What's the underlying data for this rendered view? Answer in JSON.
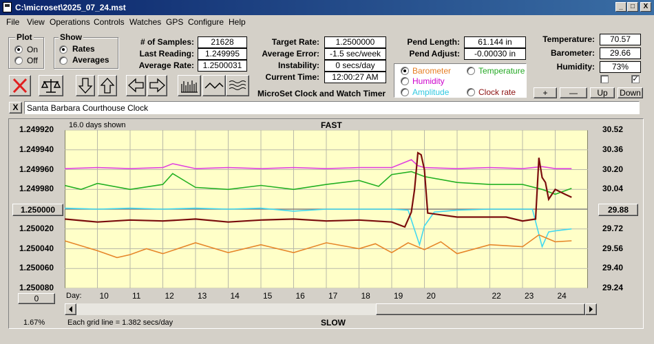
{
  "window": {
    "title": "C:\\microset\\2025_07_24.mst",
    "minimize": "_",
    "maximize": "□",
    "close": "X"
  },
  "menu": [
    "File",
    "View",
    "Operations",
    "Controls",
    "Watches",
    "GPS",
    "Configure",
    "Help"
  ],
  "plot_group": {
    "title": "Plot",
    "on": "On",
    "off": "Off",
    "selected": "On"
  },
  "show_group": {
    "title": "Show",
    "rates": "Rates",
    "averages": "Averages",
    "selected": "Rates"
  },
  "stats": {
    "samples_label": "# of Samples:",
    "samples": "21628",
    "last_label": "Last Reading:",
    "last": "1.249995",
    "avg_label": "Average Rate:",
    "avg": "1.2500031"
  },
  "rates": {
    "target_label": "Target Rate:",
    "target": "1.2500000",
    "error_label": "Average Error:",
    "error": "-1.5 sec/week",
    "instab_label": "Instability:",
    "instab": "0 secs/day",
    "time_label": "Current Time:",
    "time": "12:00:27 AM"
  },
  "app_title": "MicroSet Clock and Watch Timer",
  "pend": {
    "length_label": "Pend Length:",
    "length": "61.144 in",
    "adjust_label": "Pend Adjust:",
    "adjust": "-0.00030 in"
  },
  "options": [
    {
      "label": "Barometer",
      "color": "#e67e22",
      "selected": true
    },
    {
      "label": "Temperature",
      "color": "#22a822",
      "selected": false
    },
    {
      "label": "Humidity",
      "color": "#cc00cc",
      "selected": false
    },
    {
      "label": "Amplitude",
      "color": "#30c8e0",
      "selected": false
    },
    {
      "label": "Clock rate",
      "color": "#8b1010",
      "selected": false
    }
  ],
  "env": {
    "temp_label": "Temperature:",
    "temp": "70.57",
    "baro_label": "Barometer:",
    "baro": "29.66",
    "hum_label": "Humidity:",
    "hum": "73%",
    "check1": false,
    "check2": true
  },
  "zoom_buttons": {
    "plus": "+",
    "minus": "—",
    "up": "Up",
    "down": "Down"
  },
  "toolbar_icons": [
    "stop-icon",
    "balance-icon",
    "arrow-down-icon",
    "arrow-up-icon",
    "arrow-left-icon",
    "arrow-right-icon",
    "bars-icon",
    "wave-icon",
    "multiwave-icon"
  ],
  "name_box": {
    "close": "X",
    "value": "Santa Barbara Courthouse Clock"
  },
  "chart_head": {
    "days_shown": "16.0 days shown",
    "fast": "FAST",
    "slow": "SLOW"
  },
  "chart_foot": {
    "percent": "1.67%",
    "grid_note": "Each grid line = 1.382 secs/day",
    "zero_btn": "0",
    "day_label": "Day:"
  },
  "current_rate_btn": "1.250000",
  "current_baro_btn": "29.88",
  "chart_data": {
    "type": "line",
    "x_label": "Day",
    "x_ticks": [
      "10",
      "11",
      "12",
      "13",
      "14",
      "15",
      "16",
      "17",
      "18",
      "19",
      "20",
      "22",
      "23",
      "24"
    ],
    "left_axis_ticks": [
      "1.249920",
      "1.249940",
      "1.249960",
      "1.249980",
      "1.250000",
      "1.250020",
      "1.250040",
      "1.250060",
      "1.250080"
    ],
    "right_axis_ticks": [
      "30.52",
      "30.36",
      "30.20",
      "30.04",
      "29.88",
      "29.72",
      "29.56",
      "29.40",
      "29.24"
    ],
    "left_ylim": [
      1.24992,
      1.25008
    ],
    "right_ylim": [
      29.24,
      30.52
    ],
    "series": [
      {
        "name": "Humidity",
        "color": "#e040e0",
        "x": [
          9,
          10,
          11,
          12,
          12.3,
          13,
          14,
          15,
          16,
          17,
          18,
          19,
          19.6,
          19.8,
          20,
          21,
          22,
          23,
          23.6,
          24,
          24.5
        ],
        "y": [
          1.249959,
          1.249958,
          1.249959,
          1.249958,
          1.249954,
          1.249959,
          1.249958,
          1.249959,
          1.249958,
          1.249959,
          1.249958,
          1.249958,
          1.24995,
          1.249956,
          1.249958,
          1.249959,
          1.249958,
          1.249959,
          1.249957,
          1.249959,
          1.249959
        ]
      },
      {
        "name": "Temperature",
        "color": "#22b022",
        "x": [
          9,
          9.5,
          10,
          11,
          12,
          12.3,
          13,
          14,
          15,
          16,
          17,
          18,
          18.6,
          19,
          19.6,
          20,
          21,
          22,
          23,
          23.6,
          24,
          24.5
        ],
        "y": [
          1.249976,
          1.24998,
          1.249974,
          1.24998,
          1.249975,
          1.249964,
          1.249978,
          1.24998,
          1.249976,
          1.24998,
          1.249975,
          1.249971,
          1.249977,
          1.249965,
          1.249962,
          1.249967,
          1.249973,
          1.249975,
          1.249975,
          1.24998,
          1.249985,
          1.249979
        ]
      },
      {
        "name": "Amplitude",
        "color": "#40d8f0",
        "x": [
          9,
          10,
          11,
          12,
          13,
          14,
          15,
          16,
          17,
          18,
          19,
          19.5,
          19.85,
          20.0,
          20.3,
          21,
          22,
          23,
          23.3,
          23.6,
          23.8,
          24,
          24.5
        ],
        "y": [
          1.249999,
          1.25,
          1.249999,
          1.25,
          1.249999,
          1.25,
          1.249999,
          1.250002,
          1.25,
          1.25,
          1.25,
          1.250001,
          1.250036,
          1.250017,
          1.250003,
          1.250001,
          1.25,
          1.25,
          1.25,
          1.250038,
          1.250023,
          1.250022,
          1.25002
        ]
      },
      {
        "name": "Barometer",
        "color": "#e6862a",
        "x": [
          9,
          10,
          10.6,
          11,
          11.5,
          12,
          13,
          14,
          15,
          16,
          17,
          18,
          18.5,
          19,
          19.5,
          20,
          20.5,
          21,
          22,
          23,
          23.5,
          24,
          24.5
        ],
        "y": [
          1.250032,
          1.250042,
          1.250049,
          1.250046,
          1.25004,
          1.250045,
          1.250034,
          1.250044,
          1.250036,
          1.250044,
          1.250034,
          1.25004,
          1.250035,
          1.250044,
          1.250034,
          1.250041,
          1.250033,
          1.250045,
          1.250036,
          1.250038,
          1.250026,
          1.250033,
          1.250032
        ]
      },
      {
        "name": "Clock rate",
        "color": "#7a0c0c",
        "x": [
          9,
          10,
          11,
          12,
          13,
          14,
          15,
          16,
          17,
          18,
          19,
          19.4,
          19.6,
          19.7,
          19.8,
          19.9,
          20.0,
          20.1,
          21,
          22,
          22.5,
          23,
          23.4,
          23.5,
          23.6,
          23.7,
          23.8,
          24,
          24.3,
          24.5
        ],
        "y": [
          1.25001,
          1.250013,
          1.250011,
          1.250012,
          1.25001,
          1.250013,
          1.250011,
          1.25001,
          1.250012,
          1.250011,
          1.250013,
          1.250018,
          1.250003,
          1.24998,
          1.249943,
          1.249945,
          1.24996,
          1.250004,
          1.250008,
          1.250008,
          1.250008,
          1.250012,
          1.25001,
          1.249948,
          1.249968,
          1.249973,
          1.24999,
          1.24998,
          1.249985,
          1.249988
        ]
      }
    ]
  }
}
